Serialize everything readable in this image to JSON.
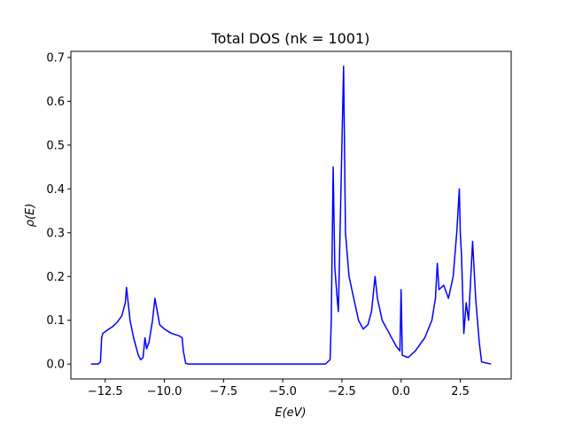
{
  "chart_data": {
    "type": "line",
    "title": "Total DOS (nk = 1001)",
    "x_label": "E(eV)",
    "y_label": "ρ(E)",
    "color": "#0000ff",
    "x": [
      -13.1,
      -12.8,
      -12.7,
      -12.65,
      -12.6,
      -12.4,
      -12.2,
      -12.0,
      -11.8,
      -11.65,
      -11.6,
      -11.55,
      -11.45,
      -11.3,
      -11.1,
      -11.0,
      -10.9,
      -10.82,
      -10.75,
      -10.65,
      -10.5,
      -10.4,
      -10.3,
      -10.2,
      -10.0,
      -9.7,
      -9.4,
      -9.25,
      -9.2,
      -9.1,
      -9.0,
      -3.2,
      -3.0,
      -2.95,
      -2.87,
      -2.8,
      -2.7,
      -2.65,
      -2.43,
      -2.35,
      -2.2,
      -2.0,
      -1.8,
      -1.6,
      -1.4,
      -1.25,
      -1.1,
      -1.0,
      -0.8,
      -0.5,
      -0.2,
      -0.05,
      0.0,
      0.05,
      0.3,
      0.6,
      1.0,
      1.3,
      1.45,
      1.53,
      1.6,
      1.8,
      2.0,
      2.2,
      2.35,
      2.46,
      2.5,
      2.55,
      2.65,
      2.75,
      2.85,
      3.02,
      3.1,
      3.15,
      3.3,
      3.4,
      3.8
    ],
    "values": [
      0.0,
      0.0,
      0.005,
      0.06,
      0.07,
      0.078,
      0.085,
      0.095,
      0.11,
      0.14,
      0.175,
      0.15,
      0.1,
      0.06,
      0.02,
      0.01,
      0.015,
      0.06,
      0.035,
      0.05,
      0.1,
      0.15,
      0.12,
      0.09,
      0.08,
      0.07,
      0.065,
      0.06,
      0.03,
      0.002,
      0.0,
      0.0,
      0.01,
      0.1,
      0.45,
      0.22,
      0.15,
      0.12,
      0.68,
      0.3,
      0.2,
      0.15,
      0.1,
      0.08,
      0.09,
      0.12,
      0.2,
      0.15,
      0.1,
      0.07,
      0.04,
      0.03,
      0.17,
      0.02,
      0.015,
      0.03,
      0.06,
      0.1,
      0.15,
      0.23,
      0.17,
      0.18,
      0.15,
      0.2,
      0.3,
      0.4,
      0.3,
      0.25,
      0.07,
      0.14,
      0.1,
      0.28,
      0.2,
      0.15,
      0.05,
      0.005,
      0.0
    ],
    "xlim": [
      -13.95,
      4.65
    ],
    "ylim": [
      -0.034,
      0.714
    ],
    "xticks": [
      {
        "value": -12.5,
        "label": "−12.5"
      },
      {
        "value": -10,
        "label": "−10.0"
      },
      {
        "value": -7.5,
        "label": "−7.5"
      },
      {
        "value": -5,
        "label": "−5.0"
      },
      {
        "value": -2.5,
        "label": "−2.5"
      },
      {
        "value": 0,
        "label": "0.0"
      },
      2.5
    ],
    "yticks": [
      {
        "value": 0,
        "label": "0.0"
      },
      0.1,
      0.2,
      0.3,
      0.4,
      0.5,
      0.6,
      0.7
    ]
  }
}
